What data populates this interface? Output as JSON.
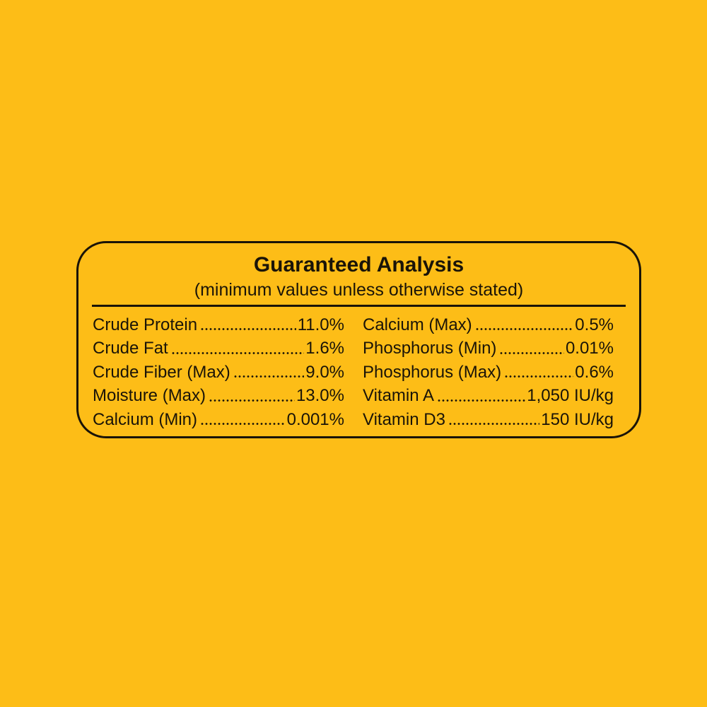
{
  "header": {
    "title": "Guaranteed Analysis",
    "subtitle": "(minimum values unless otherwise stated)"
  },
  "columns": [
    [
      {
        "name": "Crude Protein",
        "value": "11.0%"
      },
      {
        "name": "Crude Fat",
        "value": "1.6%"
      },
      {
        "name": "Crude Fiber (Max)",
        "value": "9.0%"
      },
      {
        "name": "Moisture (Max)",
        "value": "13.0%"
      },
      {
        "name": "Calcium (Min)",
        "value": "0.001%"
      }
    ],
    [
      {
        "name": "Calcium (Max)",
        "value": "0.5%"
      },
      {
        "name": "Phosphorus (Min)",
        "value": "0.01%"
      },
      {
        "name": "Phosphorus (Max)",
        "value": "0.6%"
      },
      {
        "name": "Vitamin A",
        "value": "1,050 IU/kg"
      },
      {
        "name": "Vitamin D3",
        "value": "150 IU/kg"
      }
    ]
  ]
}
